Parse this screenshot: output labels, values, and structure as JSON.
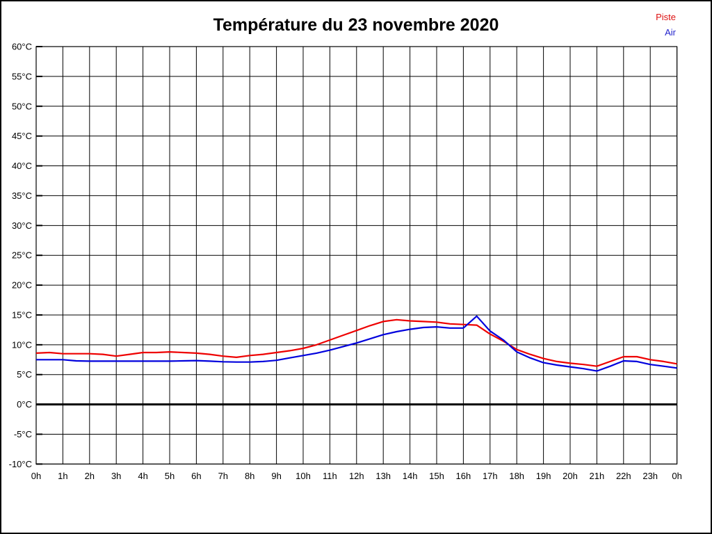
{
  "page": {
    "title": "Température du 23 novembre 2020"
  },
  "legend": {
    "items": [
      {
        "label": "Piste",
        "color": "#dd1111"
      },
      {
        "label": "Air",
        "color": "#2222cc"
      }
    ]
  },
  "chart_data": {
    "type": "line",
    "title": "Température du 23 novembre 2020",
    "xlabel": "",
    "ylabel": "",
    "x_axis": {
      "min": 0,
      "max": 24,
      "step": 1,
      "unit": "h",
      "tick_labels": [
        "0h",
        "1h",
        "2h",
        "3h",
        "4h",
        "5h",
        "6h",
        "7h",
        "8h",
        "9h",
        "10h",
        "11h",
        "12h",
        "13h",
        "14h",
        "15h",
        "16h",
        "17h",
        "18h",
        "19h",
        "20h",
        "21h",
        "22h",
        "23h",
        "0h"
      ]
    },
    "y_axis": {
      "min": -10,
      "max": 60,
      "step": 5,
      "unit": "°C",
      "tick_labels": [
        "60°C",
        "55°C",
        "50°C",
        "45°C",
        "40°C",
        "35°C",
        "30°C",
        "25°C",
        "20°C",
        "15°C",
        "10°C",
        "5°C",
        "0°C",
        "-5°C",
        "-10°C"
      ]
    },
    "grid": "full-black",
    "zero_line": true,
    "legend_position": "top-right",
    "x_start_hours": 0,
    "x_step_hours": 0.5,
    "series": [
      {
        "name": "Piste",
        "color": "#ee0000",
        "values": [
          8.6,
          8.7,
          8.5,
          8.5,
          8.5,
          8.4,
          8.1,
          8.4,
          8.7,
          8.7,
          8.8,
          8.7,
          8.6,
          8.4,
          8.1,
          7.9,
          8.2,
          8.4,
          8.7,
          9.0,
          9.4,
          10.0,
          10.8,
          11.6,
          12.4,
          13.2,
          13.9,
          14.2,
          14.0,
          13.9,
          13.8,
          13.5,
          13.4,
          13.3,
          11.8,
          10.6,
          9.2,
          8.4,
          7.7,
          7.2,
          6.9,
          6.7,
          6.4,
          7.2,
          8.0,
          8.0,
          7.5,
          7.2,
          6.8
        ]
      },
      {
        "name": "Air",
        "color": "#0000dd",
        "values": [
          7.5,
          7.5,
          7.5,
          7.3,
          7.25,
          7.25,
          7.25,
          7.25,
          7.25,
          7.25,
          7.25,
          7.3,
          7.35,
          7.25,
          7.15,
          7.1,
          7.1,
          7.2,
          7.4,
          7.8,
          8.2,
          8.6,
          9.1,
          9.7,
          10.3,
          11.0,
          11.7,
          12.2,
          12.6,
          12.9,
          13.0,
          12.8,
          12.8,
          14.8,
          12.3,
          10.8,
          8.8,
          7.8,
          7.0,
          6.6,
          6.3,
          6.0,
          5.6,
          6.4,
          7.3,
          7.2,
          6.7,
          6.4,
          6.1
        ]
      }
    ]
  }
}
